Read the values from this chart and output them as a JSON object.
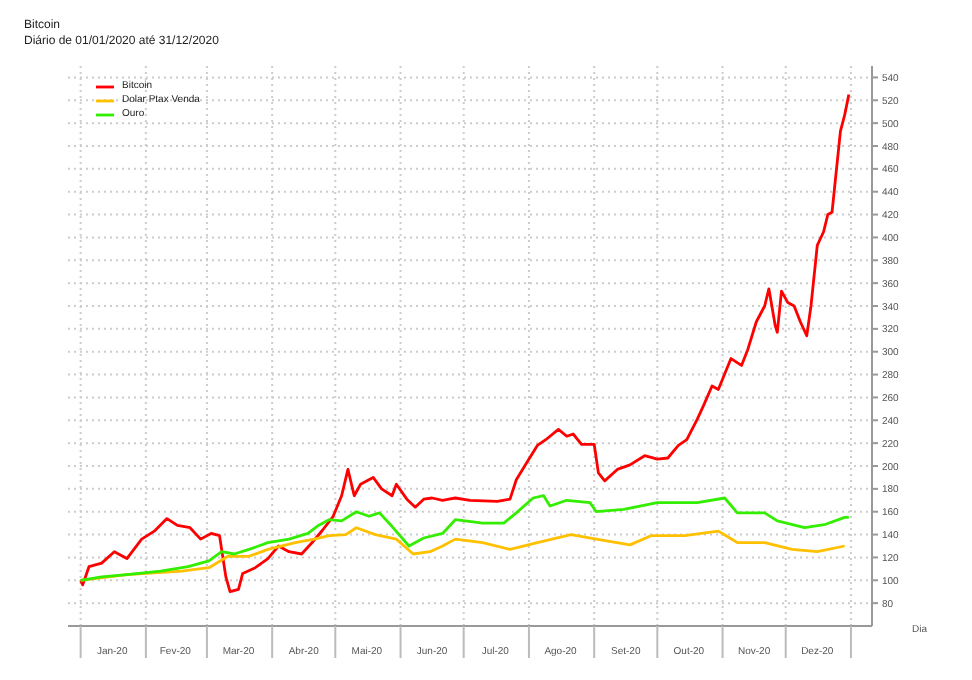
{
  "chart_data": {
    "type": "line",
    "title": "Bitcoin",
    "subtitle": "Diário de 01/01/2020 até 31/12/2020",
    "xlabel": "Dia",
    "xlim": [
      "2019-12-26",
      "2021-01-11"
    ],
    "xticks": [
      {
        "value": "2020-01-01",
        "label": null
      },
      {
        "value": "2020-01-16",
        "label": "Jan-20"
      },
      {
        "value": "2020-02-01",
        "label": null
      },
      {
        "value": "2020-02-15",
        "label": "Fev-20"
      },
      {
        "value": "2020-03-01",
        "label": null
      },
      {
        "value": "2020-03-16",
        "label": "Mar-20"
      },
      {
        "value": "2020-04-01",
        "label": null
      },
      {
        "value": "2020-04-16",
        "label": "Abr-20"
      },
      {
        "value": "2020-05-01",
        "label": null
      },
      {
        "value": "2020-05-16",
        "label": "Mai-20"
      },
      {
        "value": "2020-06-01",
        "label": null
      },
      {
        "value": "2020-06-16",
        "label": "Jun-20"
      },
      {
        "value": "2020-07-01",
        "label": null
      },
      {
        "value": "2020-07-16",
        "label": "Jul-20"
      },
      {
        "value": "2020-08-01",
        "label": null
      },
      {
        "value": "2020-08-16",
        "label": "Ago-20"
      },
      {
        "value": "2020-09-01",
        "label": null
      },
      {
        "value": "2020-09-16",
        "label": "Set-20"
      },
      {
        "value": "2020-10-01",
        "label": null
      },
      {
        "value": "2020-10-16",
        "label": "Out-20"
      },
      {
        "value": "2020-11-01",
        "label": null
      },
      {
        "value": "2020-11-16",
        "label": "Nov-20"
      },
      {
        "value": "2020-12-01",
        "label": null
      },
      {
        "value": "2020-12-16",
        "label": "Dez-20"
      },
      {
        "value": "2021-01-01",
        "label": null
      }
    ],
    "ylim": [
      60,
      550
    ],
    "yticks": [
      80,
      100,
      120,
      140,
      160,
      180,
      200,
      220,
      240,
      260,
      280,
      300,
      320,
      340,
      360,
      380,
      400,
      420,
      440,
      460,
      480,
      500,
      520,
      540
    ],
    "grid": true,
    "legend": "top left",
    "marker": "none",
    "line_style": "solid",
    "series": [
      {
        "name": "Bitcoin",
        "color": "#ff0000",
        "x": [
          "2020-01-01",
          "2020-01-02",
          "2020-01-05",
          "2020-01-11",
          "2020-01-17",
          "2020-01-23",
          "2020-01-30",
          "2020-02-05",
          "2020-02-11",
          "2020-02-16",
          "2020-02-22",
          "2020-02-27",
          "2020-03-03",
          "2020-03-07",
          "2020-03-10",
          "2020-03-12",
          "2020-03-16",
          "2020-03-18",
          "2020-03-24",
          "2020-03-30",
          "2020-04-04",
          "2020-04-09",
          "2020-04-15",
          "2020-04-20",
          "2020-04-25",
          "2020-04-30",
          "2020-05-04",
          "2020-05-07",
          "2020-05-10",
          "2020-05-13",
          "2020-05-19",
          "2020-05-23",
          "2020-05-28",
          "2020-05-30",
          "2020-06-04",
          "2020-06-08",
          "2020-06-12",
          "2020-06-16",
          "2020-06-21",
          "2020-06-24",
          "2020-06-27",
          "2020-07-04",
          "2020-07-17",
          "2020-07-23",
          "2020-07-26",
          "2020-07-31",
          "2020-08-05",
          "2020-08-09",
          "2020-08-15",
          "2020-08-19",
          "2020-08-22",
          "2020-08-26",
          "2020-09-01",
          "2020-09-03",
          "2020-09-06",
          "2020-09-12",
          "2020-09-18",
          "2020-09-25",
          "2020-10-01",
          "2020-10-06",
          "2020-10-11",
          "2020-10-15",
          "2020-10-20",
          "2020-10-23",
          "2020-10-27",
          "2020-10-30",
          "2020-11-05",
          "2020-11-10",
          "2020-11-13",
          "2020-11-17",
          "2020-11-21",
          "2020-11-23",
          "2020-11-26",
          "2020-11-27",
          "2020-11-29",
          "2020-12-02",
          "2020-12-05",
          "2020-12-08",
          "2020-12-11",
          "2020-12-13",
          "2020-12-16",
          "2020-12-19",
          "2020-12-21",
          "2020-12-23",
          "2020-12-27",
          "2020-12-29",
          "2020-12-31"
        ],
        "values": [
          100,
          96,
          112,
          115,
          125,
          119,
          136,
          143,
          154,
          148,
          146,
          136,
          141,
          139,
          103,
          90,
          92,
          106,
          111,
          119,
          130,
          125,
          123,
          133,
          144,
          156,
          174,
          197,
          174,
          184,
          190,
          180,
          174,
          184,
          171,
          164,
          171,
          172,
          170,
          171,
          172,
          170,
          169,
          171,
          188,
          203,
          218,
          223,
          232,
          226,
          228,
          219,
          219,
          194,
          187,
          197,
          201,
          209,
          206,
          207,
          218,
          223,
          241,
          253,
          270,
          267,
          294,
          288,
          302,
          326,
          340,
          355,
          323,
          317,
          353,
          343,
          340,
          326,
          314,
          340,
          393,
          405,
          420,
          422,
          493,
          507,
          525
        ]
      },
      {
        "name": "Dolar Ptax Venda",
        "color": "#ffc000",
        "x": [
          "2020-01-01",
          "2020-01-23",
          "2020-02-18",
          "2020-03-02",
          "2020-03-11",
          "2020-03-21",
          "2020-03-30",
          "2020-04-12",
          "2020-04-21",
          "2020-04-28",
          "2020-05-06",
          "2020-05-11",
          "2020-05-20",
          "2020-05-30",
          "2020-06-07",
          "2020-06-15",
          "2020-06-21",
          "2020-06-27",
          "2020-07-10",
          "2020-07-23",
          "2020-08-05",
          "2020-08-21",
          "2020-09-02",
          "2020-09-18",
          "2020-09-28",
          "2020-10-14",
          "2020-10-30",
          "2020-11-08",
          "2020-11-21",
          "2020-12-04",
          "2020-12-16",
          "2020-12-29"
        ],
        "values": [
          100,
          105,
          108,
          111,
          121,
          121,
          127,
          133,
          136,
          139,
          140,
          146,
          140,
          136,
          123,
          125,
          130,
          136,
          133,
          127,
          133,
          140,
          136,
          131,
          139,
          139,
          143,
          133,
          133,
          127,
          125,
          130
        ]
      },
      {
        "name": "Ouro",
        "color": "#33ee00",
        "x": [
          "2020-01-01",
          "2020-01-11",
          "2020-01-23",
          "2020-02-08",
          "2020-02-21",
          "2020-03-02",
          "2020-03-08",
          "2020-03-14",
          "2020-03-21",
          "2020-03-30",
          "2020-04-09",
          "2020-04-18",
          "2020-04-23",
          "2020-04-28",
          "2020-05-04",
          "2020-05-11",
          "2020-05-17",
          "2020-05-22",
          "2020-05-28",
          "2020-06-05",
          "2020-06-12",
          "2020-06-21",
          "2020-06-27",
          "2020-07-10",
          "2020-07-20",
          "2020-07-26",
          "2020-08-03",
          "2020-08-08",
          "2020-08-11",
          "2020-08-19",
          "2020-08-30",
          "2020-09-02",
          "2020-09-15",
          "2020-10-01",
          "2020-10-20",
          "2020-11-02",
          "2020-11-08",
          "2020-11-21",
          "2020-11-27",
          "2020-12-10",
          "2020-12-20",
          "2020-12-29",
          "2020-12-31"
        ],
        "values": [
          100,
          103,
          105,
          108,
          112,
          117,
          125,
          123,
          127,
          133,
          136,
          141,
          148,
          153,
          152,
          160,
          156,
          159,
          147,
          130,
          137,
          141,
          153,
          150,
          150,
          159,
          172,
          174,
          165,
          170,
          168,
          160,
          162,
          168,
          168,
          172,
          159,
          159,
          152,
          146,
          149,
          155,
          155
        ]
      }
    ]
  }
}
